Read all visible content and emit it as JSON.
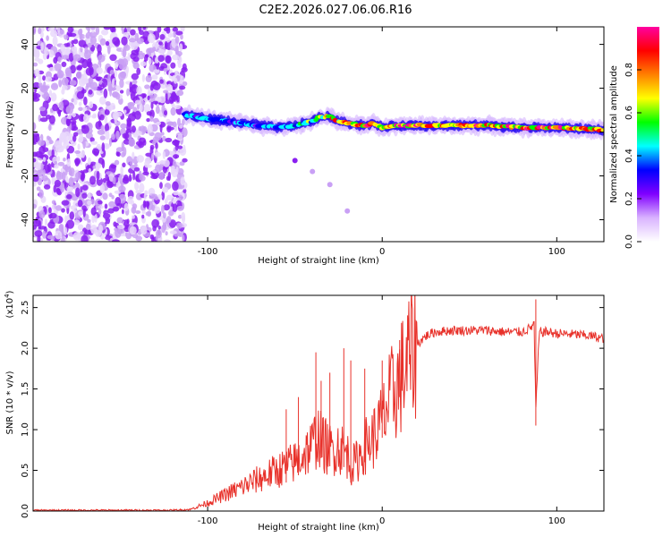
{
  "title": "C2E2.2026.027.06.06.R16",
  "chart_data": [
    {
      "type": "heatmap",
      "title": "C2E2.2026.027.06.06.R16",
      "xlabel": "Height of straight line (km)",
      "ylabel": "Frequency (Hz)",
      "xlim": [
        -200,
        127
      ],
      "ylim": [
        -50,
        48
      ],
      "xticks": [
        -100,
        0,
        100
      ],
      "yticks": [
        -40,
        -20,
        0,
        20,
        40
      ],
      "description_series": {
        "noise_region_x": [
          -200,
          -113
        ],
        "ridge_x": [
          -113,
          -100,
          -80,
          -60,
          -50,
          -40,
          -35,
          -30,
          -25,
          -20,
          -10,
          -5,
          0,
          10,
          20,
          40,
          60,
          80,
          100,
          127
        ],
        "ridge_freq": [
          8,
          6,
          4,
          2,
          3,
          5,
          7,
          7,
          5,
          4,
          3,
          4,
          2,
          3,
          3,
          3,
          3,
          2,
          2,
          1
        ],
        "ridge_amplitude": [
          0.4,
          0.45,
          0.45,
          0.4,
          0.5,
          0.6,
          0.7,
          0.8,
          0.8,
          0.85,
          0.9,
          0.85,
          0.85,
          0.9,
          0.9,
          0.9,
          0.9,
          0.9,
          0.95,
          0.9
        ],
        "tail_x": [
          -50,
          -40,
          -30,
          -20
        ],
        "tail_freq": [
          -13,
          -18,
          -24,
          -36
        ]
      },
      "colorbar": {
        "label": "Normalized spectral amplitude",
        "range": [
          0.0,
          1.0
        ],
        "ticks": [
          "0.0",
          "0.2",
          "0.4",
          "0.6",
          "0.8"
        ],
        "colors": [
          "#ffffff",
          "#d9b3ff",
          "#8000ff",
          "#0000ff",
          "#00ffff",
          "#00ff00",
          "#ffff00",
          "#ff8000",
          "#ff0000",
          "#ff00a0"
        ]
      }
    },
    {
      "type": "line",
      "xlabel": "Height of straight line (km)",
      "ylabel": "SNR (10 * v/v)",
      "y_multiplier": "(x10",
      "y_multiplier_exp": "4",
      "y_multiplier_close": ")",
      "xlim": [
        -200,
        127
      ],
      "ylim": [
        0,
        2.65
      ],
      "xticks": [
        -100,
        0,
        100
      ],
      "yticks": [
        0.0,
        0.5,
        1.0,
        1.5,
        2.0,
        2.5
      ],
      "series": [
        {
          "name": "SNR",
          "color": "#e8312a",
          "x": [
            -200,
            -180,
            -160,
            -140,
            -120,
            -110,
            -100,
            -95,
            -90,
            -85,
            -80,
            -75,
            -70,
            -65,
            -60,
            -55,
            -50,
            -45,
            -40,
            -37,
            -35,
            -30,
            -25,
            -20,
            -18,
            -15,
            -10,
            -5,
            0,
            5,
            10,
            15,
            20,
            25,
            30,
            40,
            50,
            60,
            70,
            80,
            85,
            87,
            88,
            90,
            95,
            100,
            110,
            120,
            127
          ],
          "y": [
            0.01,
            0.01,
            0.01,
            0.01,
            0.01,
            0.02,
            0.1,
            0.15,
            0.2,
            0.25,
            0.3,
            0.35,
            0.4,
            0.45,
            0.5,
            0.55,
            0.6,
            0.7,
            0.8,
            0.95,
            0.85,
            0.75,
            0.8,
            0.7,
            0.55,
            0.6,
            0.8,
            0.9,
            1.1,
            1.4,
            1.6,
            1.85,
            2.05,
            2.15,
            2.2,
            2.22,
            2.22,
            2.22,
            2.2,
            2.2,
            2.25,
            2.3,
            1.25,
            2.2,
            2.2,
            2.18,
            2.17,
            2.15,
            2.12
          ]
        }
      ],
      "spikes": [
        {
          "x": -55,
          "y": 1.25
        },
        {
          "x": -48,
          "y": 1.4
        },
        {
          "x": -38,
          "y": 1.95
        },
        {
          "x": -35,
          "y": 1.6
        },
        {
          "x": -30,
          "y": 1.7
        },
        {
          "x": -22,
          "y": 2.0
        },
        {
          "x": -18,
          "y": 1.85
        },
        {
          "x": -10,
          "y": 1.75
        },
        {
          "x": 0,
          "y": 1.85
        },
        {
          "x": 10,
          "y": 2.1
        },
        {
          "x": 88,
          "y": 2.6
        }
      ]
    }
  ]
}
